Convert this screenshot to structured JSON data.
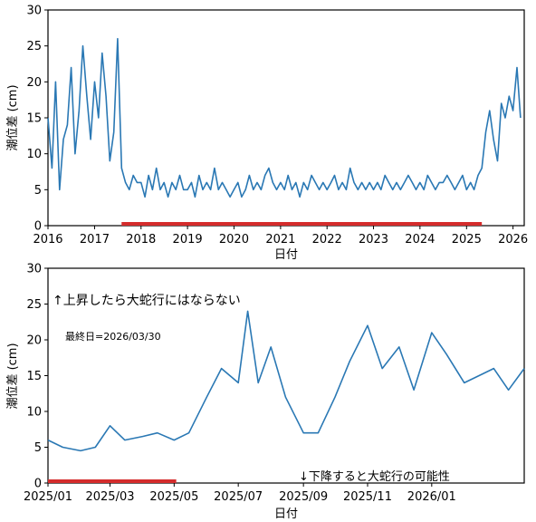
{
  "chart_data": [
    {
      "type": "line",
      "xlabel": "日付",
      "ylabel": "潮位差 (cm)",
      "x_ticks": [
        "2016",
        "2017",
        "2018",
        "2019",
        "2020",
        "2021",
        "2022",
        "2023",
        "2024",
        "2025",
        "2026"
      ],
      "y_ticks": [
        0,
        5,
        10,
        15,
        20,
        25,
        30
      ],
      "xlim": [
        "2016-01-01",
        "2026-03-30"
      ],
      "ylim": [
        0,
        30
      ],
      "grid": false,
      "series": [
        {
          "color": "#2a78b4",
          "x": [
            "2016-01",
            "2016-02",
            "2016-03",
            "2016-04",
            "2016-05",
            "2016-06",
            "2016-07",
            "2016-08",
            "2016-09",
            "2016-10",
            "2016-11",
            "2016-12",
            "2017-01",
            "2017-02",
            "2017-03",
            "2017-04",
            "2017-05",
            "2017-06",
            "2017-07",
            "2017-08",
            "2017-09",
            "2017-10",
            "2017-11",
            "2017-12",
            "2018-01",
            "2018-02",
            "2018-03",
            "2018-04",
            "2018-05",
            "2018-06",
            "2018-07",
            "2018-08",
            "2018-09",
            "2018-10",
            "2018-11",
            "2018-12",
            "2019-01",
            "2019-02",
            "2019-03",
            "2019-04",
            "2019-05",
            "2019-06",
            "2019-07",
            "2019-08",
            "2019-09",
            "2019-10",
            "2019-11",
            "2019-12",
            "2020-01",
            "2020-02",
            "2020-03",
            "2020-04",
            "2020-05",
            "2020-06",
            "2020-07",
            "2020-08",
            "2020-09",
            "2020-10",
            "2020-11",
            "2020-12",
            "2021-01",
            "2021-02",
            "2021-03",
            "2021-04",
            "2021-05",
            "2021-06",
            "2021-07",
            "2021-08",
            "2021-09",
            "2021-10",
            "2021-11",
            "2021-12",
            "2022-01",
            "2022-02",
            "2022-03",
            "2022-04",
            "2022-05",
            "2022-06",
            "2022-07",
            "2022-08",
            "2022-09",
            "2022-10",
            "2022-11",
            "2022-12",
            "2023-01",
            "2023-02",
            "2023-03",
            "2023-04",
            "2023-05",
            "2023-06",
            "2023-07",
            "2023-08",
            "2023-09",
            "2023-10",
            "2023-11",
            "2023-12",
            "2024-01",
            "2024-02",
            "2024-03",
            "2024-04",
            "2024-05",
            "2024-06",
            "2024-07",
            "2024-08",
            "2024-09",
            "2024-10",
            "2024-11",
            "2024-12",
            "2025-01",
            "2025-02",
            "2025-03",
            "2025-04",
            "2025-05",
            "2025-06",
            "2025-07",
            "2025-08",
            "2025-09",
            "2025-10",
            "2025-11",
            "2025-12",
            "2026-01",
            "2026-02",
            "2026-03"
          ],
          "y": [
            15,
            8,
            20,
            5,
            12,
            14,
            22,
            10,
            16,
            25,
            18,
            12,
            20,
            15,
            24,
            18,
            9,
            13,
            26,
            8,
            6,
            5,
            7,
            6,
            6,
            4,
            7,
            5,
            8,
            5,
            6,
            4,
            6,
            5,
            7,
            5,
            5,
            6,
            4,
            7,
            5,
            6,
            5,
            8,
            5,
            6,
            5,
            4,
            5,
            6,
            4,
            5,
            7,
            5,
            6,
            5,
            7,
            8,
            6,
            5,
            6,
            5,
            7,
            5,
            6,
            4,
            6,
            5,
            7,
            6,
            5,
            6,
            5,
            6,
            7,
            5,
            6,
            5,
            8,
            6,
            5,
            6,
            5,
            6,
            5,
            6,
            5,
            7,
            6,
            5,
            6,
            5,
            6,
            7,
            6,
            5,
            6,
            5,
            7,
            6,
            5,
            6,
            6,
            7,
            6,
            5,
            6,
            7,
            5,
            6,
            5,
            7,
            8,
            13,
            16,
            12,
            9,
            17,
            15,
            18,
            16,
            22,
            15
          ]
        }
      ],
      "highlight_band": {
        "x_start": "2017-08",
        "x_end": "2025-05",
        "color": "#d42c2c"
      }
    },
    {
      "type": "line",
      "xlabel": "日付",
      "ylabel": "潮位差 (cm)",
      "x_ticks": [
        "2025/01",
        "2025/03",
        "2025/05",
        "2025/07",
        "2025/09",
        "2025/11",
        "2026/01"
      ],
      "y_ticks": [
        0,
        5,
        10,
        15,
        20,
        25,
        30
      ],
      "xlim": [
        "2025-01-01",
        "2026-03-30"
      ],
      "ylim": [
        0,
        30
      ],
      "grid": false,
      "annotations": {
        "rise": "↑上昇したら大蛇行にはならない",
        "last_day": "最終日=2026/03/30",
        "fall": "↓下降すると大蛇行の可能性"
      },
      "series": [
        {
          "color": "#2a78b4",
          "x": [
            "2025-01-01",
            "2025-01-15",
            "2025-02-01",
            "2025-02-15",
            "2025-03-01",
            "2025-03-15",
            "2025-04-01",
            "2025-04-15",
            "2025-05-01",
            "2025-05-15",
            "2025-06-01",
            "2025-06-15",
            "2025-07-01",
            "2025-07-10",
            "2025-07-20",
            "2025-08-01",
            "2025-08-15",
            "2025-09-01",
            "2025-09-15",
            "2025-10-01",
            "2025-10-15",
            "2025-11-01",
            "2025-11-15",
            "2025-12-01",
            "2025-12-15",
            "2026-01-01",
            "2026-01-15",
            "2026-02-01",
            "2026-02-15",
            "2026-03-01",
            "2026-03-15",
            "2026-03-30"
          ],
          "y": [
            6,
            5,
            4.5,
            5,
            8,
            6,
            6.5,
            7,
            6,
            7,
            12,
            16,
            14,
            24,
            14,
            19,
            12,
            7,
            7,
            12,
            17,
            22,
            16,
            19,
            13,
            21,
            18,
            14,
            15,
            16,
            13,
            16
          ]
        }
      ],
      "highlight_band": {
        "x_start": "2025-01-01",
        "x_end": "2025-05-03",
        "color": "#d42c2c"
      }
    }
  ]
}
